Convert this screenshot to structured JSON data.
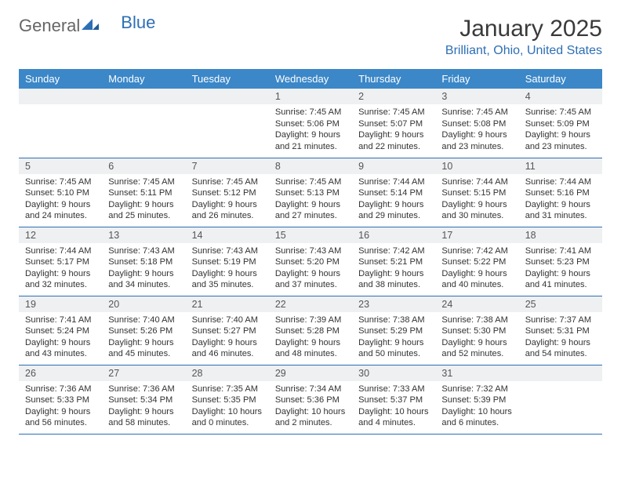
{
  "logo": {
    "part1": "General",
    "part2": "Blue"
  },
  "title": "January 2025",
  "location": "Brilliant, Ohio, United States",
  "colors": {
    "header_bg": "#3b87c8",
    "header_fg": "#ffffff",
    "accent": "#2d6fb5",
    "daynum_bg": "#eef0f2",
    "rule": "#2d6fb5"
  },
  "weekdays": [
    "Sunday",
    "Monday",
    "Tuesday",
    "Wednesday",
    "Thursday",
    "Friday",
    "Saturday"
  ],
  "weeks": [
    [
      null,
      null,
      null,
      {
        "n": "1",
        "sr": "7:45 AM",
        "ss": "5:06 PM",
        "dl": "9 hours and 21 minutes."
      },
      {
        "n": "2",
        "sr": "7:45 AM",
        "ss": "5:07 PM",
        "dl": "9 hours and 22 minutes."
      },
      {
        "n": "3",
        "sr": "7:45 AM",
        "ss": "5:08 PM",
        "dl": "9 hours and 23 minutes."
      },
      {
        "n": "4",
        "sr": "7:45 AM",
        "ss": "5:09 PM",
        "dl": "9 hours and 23 minutes."
      }
    ],
    [
      {
        "n": "5",
        "sr": "7:45 AM",
        "ss": "5:10 PM",
        "dl": "9 hours and 24 minutes."
      },
      {
        "n": "6",
        "sr": "7:45 AM",
        "ss": "5:11 PM",
        "dl": "9 hours and 25 minutes."
      },
      {
        "n": "7",
        "sr": "7:45 AM",
        "ss": "5:12 PM",
        "dl": "9 hours and 26 minutes."
      },
      {
        "n": "8",
        "sr": "7:45 AM",
        "ss": "5:13 PM",
        "dl": "9 hours and 27 minutes."
      },
      {
        "n": "9",
        "sr": "7:44 AM",
        "ss": "5:14 PM",
        "dl": "9 hours and 29 minutes."
      },
      {
        "n": "10",
        "sr": "7:44 AM",
        "ss": "5:15 PM",
        "dl": "9 hours and 30 minutes."
      },
      {
        "n": "11",
        "sr": "7:44 AM",
        "ss": "5:16 PM",
        "dl": "9 hours and 31 minutes."
      }
    ],
    [
      {
        "n": "12",
        "sr": "7:44 AM",
        "ss": "5:17 PM",
        "dl": "9 hours and 32 minutes."
      },
      {
        "n": "13",
        "sr": "7:43 AM",
        "ss": "5:18 PM",
        "dl": "9 hours and 34 minutes."
      },
      {
        "n": "14",
        "sr": "7:43 AM",
        "ss": "5:19 PM",
        "dl": "9 hours and 35 minutes."
      },
      {
        "n": "15",
        "sr": "7:43 AM",
        "ss": "5:20 PM",
        "dl": "9 hours and 37 minutes."
      },
      {
        "n": "16",
        "sr": "7:42 AM",
        "ss": "5:21 PM",
        "dl": "9 hours and 38 minutes."
      },
      {
        "n": "17",
        "sr": "7:42 AM",
        "ss": "5:22 PM",
        "dl": "9 hours and 40 minutes."
      },
      {
        "n": "18",
        "sr": "7:41 AM",
        "ss": "5:23 PM",
        "dl": "9 hours and 41 minutes."
      }
    ],
    [
      {
        "n": "19",
        "sr": "7:41 AM",
        "ss": "5:24 PM",
        "dl": "9 hours and 43 minutes."
      },
      {
        "n": "20",
        "sr": "7:40 AM",
        "ss": "5:26 PM",
        "dl": "9 hours and 45 minutes."
      },
      {
        "n": "21",
        "sr": "7:40 AM",
        "ss": "5:27 PM",
        "dl": "9 hours and 46 minutes."
      },
      {
        "n": "22",
        "sr": "7:39 AM",
        "ss": "5:28 PM",
        "dl": "9 hours and 48 minutes."
      },
      {
        "n": "23",
        "sr": "7:38 AM",
        "ss": "5:29 PM",
        "dl": "9 hours and 50 minutes."
      },
      {
        "n": "24",
        "sr": "7:38 AM",
        "ss": "5:30 PM",
        "dl": "9 hours and 52 minutes."
      },
      {
        "n": "25",
        "sr": "7:37 AM",
        "ss": "5:31 PM",
        "dl": "9 hours and 54 minutes."
      }
    ],
    [
      {
        "n": "26",
        "sr": "7:36 AM",
        "ss": "5:33 PM",
        "dl": "9 hours and 56 minutes."
      },
      {
        "n": "27",
        "sr": "7:36 AM",
        "ss": "5:34 PM",
        "dl": "9 hours and 58 minutes."
      },
      {
        "n": "28",
        "sr": "7:35 AM",
        "ss": "5:35 PM",
        "dl": "10 hours and 0 minutes."
      },
      {
        "n": "29",
        "sr": "7:34 AM",
        "ss": "5:36 PM",
        "dl": "10 hours and 2 minutes."
      },
      {
        "n": "30",
        "sr": "7:33 AM",
        "ss": "5:37 PM",
        "dl": "10 hours and 4 minutes."
      },
      {
        "n": "31",
        "sr": "7:32 AM",
        "ss": "5:39 PM",
        "dl": "10 hours and 6 minutes."
      },
      null
    ]
  ],
  "labels": {
    "sunrise": "Sunrise:",
    "sunset": "Sunset:",
    "daylight": "Daylight:"
  }
}
